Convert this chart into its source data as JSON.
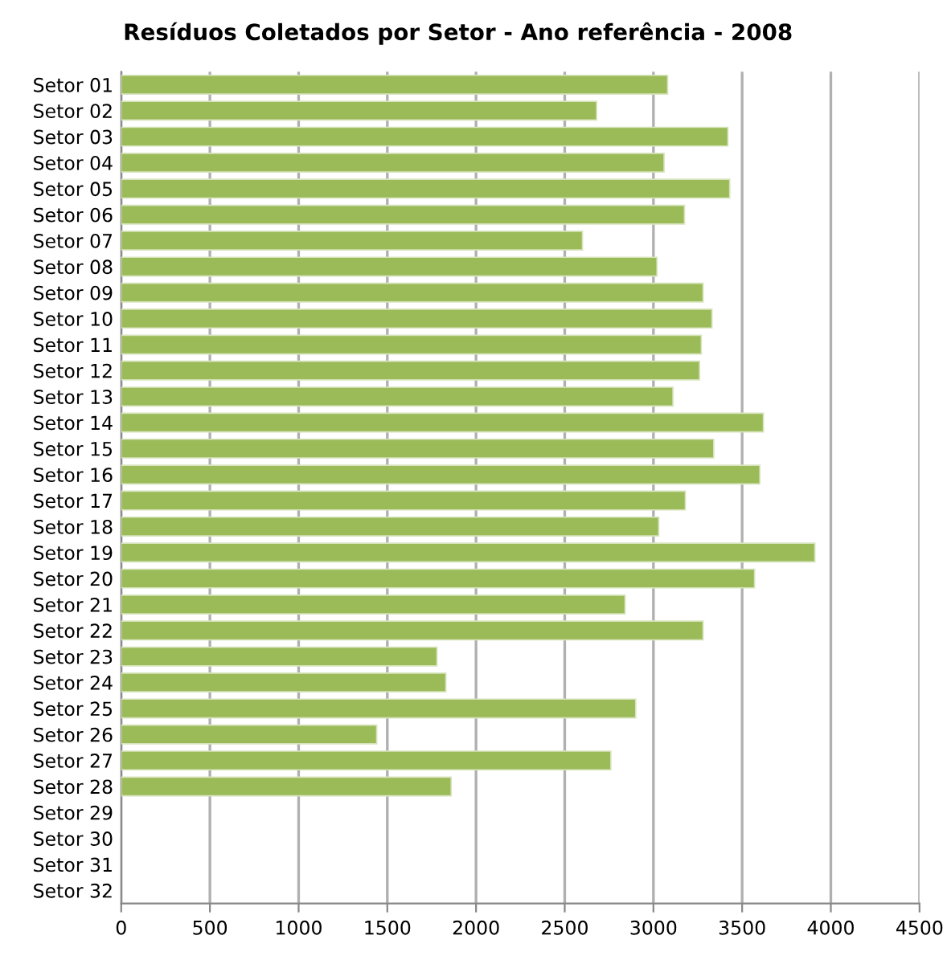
{
  "chart_data": {
    "type": "bar",
    "orientation": "horizontal",
    "title": "Resíduos Coletados por Setor - Ano referência - 2008",
    "categories": [
      "Setor 01",
      "Setor 02",
      "Setor 03",
      "Setor 04",
      "Setor 05",
      "Setor 06",
      "Setor 07",
      "Setor 08",
      "Setor 09",
      "Setor 10",
      "Setor 11",
      "Setor 12",
      "Setor 13",
      "Setor 14",
      "Setor 15",
      "Setor 16",
      "Setor 17",
      "Setor 18",
      "Setor 19",
      "Setor 20",
      "Setor 21",
      "Setor 22",
      "Setor 23",
      "Setor 24",
      "Setor 25",
      "Setor 26",
      "Setor 27",
      "Setor 28",
      "Setor 29",
      "Setor 30",
      "Setor 31",
      "Setor 32"
    ],
    "values": [
      3080,
      2680,
      3420,
      3060,
      3430,
      3175,
      2600,
      3020,
      3280,
      3330,
      3270,
      3260,
      3110,
      3620,
      3340,
      3600,
      3180,
      3030,
      3910,
      3570,
      2840,
      3280,
      1780,
      1830,
      2900,
      1440,
      2760,
      1860,
      null,
      null,
      null,
      null
    ],
    "color": "#9bbb59",
    "xlim": [
      0,
      4500
    ],
    "xticks": [
      0,
      500,
      1000,
      1500,
      2000,
      2500,
      3000,
      3500,
      4000,
      4500
    ],
    "grid": "x",
    "legend": false
  }
}
